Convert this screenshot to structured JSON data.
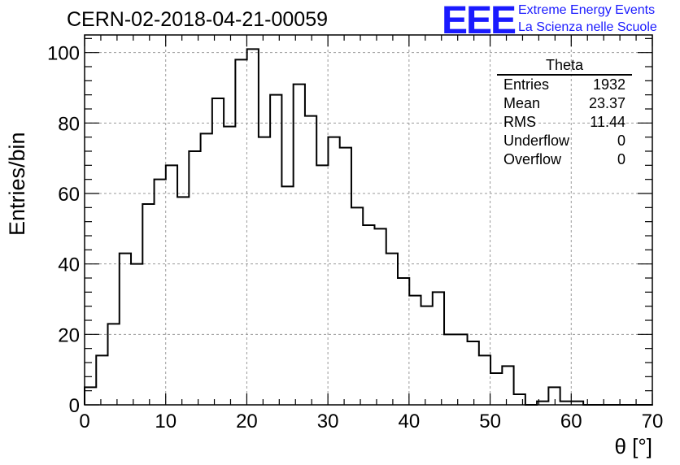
{
  "header": {
    "title": "CERN-02-2018-04-21-00059"
  },
  "logo": {
    "mark": "EEE",
    "line1": "Extreme Energy Events",
    "line2": "La Scienza nelle Scuole",
    "color": "#1a1aff"
  },
  "stats": {
    "title": "Theta",
    "rows": [
      {
        "label": "Entries",
        "value": "1932"
      },
      {
        "label": "Mean",
        "value": "23.37"
      },
      {
        "label": "RMS",
        "value": "11.44"
      },
      {
        "label": "Underflow",
        "value": "0"
      },
      {
        "label": "Overflow",
        "value": "0"
      }
    ]
  },
  "chart_data": {
    "type": "bar",
    "title": "CERN-02-2018-04-21-00059",
    "xlabel": "θ [°]",
    "ylabel": "Entries/bin",
    "xlim": [
      0,
      70
    ],
    "ylim": [
      0,
      105
    ],
    "bin_width": 1.43,
    "x_ticks": [
      0,
      10,
      20,
      30,
      40,
      50,
      60,
      70
    ],
    "y_ticks": [
      0,
      20,
      40,
      60,
      80,
      100
    ],
    "grid": true,
    "values": [
      5,
      14,
      23,
      43,
      40,
      57,
      64,
      68,
      59,
      72,
      77,
      87,
      79,
      98,
      101,
      76,
      88,
      62,
      91,
      82,
      68,
      76,
      73,
      56,
      51,
      50,
      43,
      36,
      31,
      28,
      32,
      20,
      20,
      18,
      14,
      9,
      11,
      3,
      0,
      1,
      5,
      1,
      1,
      0,
      0,
      0,
      0,
      0,
      0
    ]
  }
}
